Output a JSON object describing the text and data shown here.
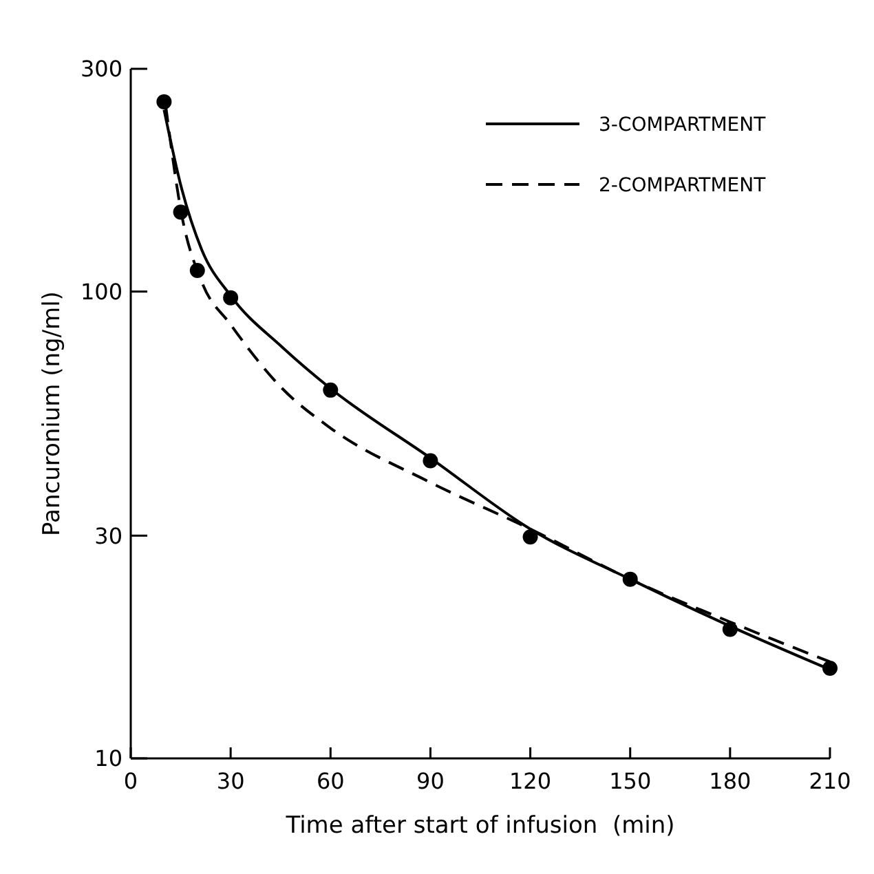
{
  "chart_data": {
    "type": "line",
    "xlabel": "Time after start of infusion  (min)",
    "ylabel": "Pancuronium (ng/ml)",
    "log": "y",
    "xlim": [
      0,
      210
    ],
    "xticks": [
      0,
      30,
      60,
      90,
      120,
      150,
      180,
      210
    ],
    "ylim": [
      10,
      300
    ],
    "yticks": [
      10,
      30,
      100,
      300
    ],
    "legend": "top right",
    "series": [
      {
        "name": "3-COMPARTMENT",
        "line_style": "solid",
        "color": "#000000",
        "x": [
          10,
          15.3,
          21.3,
          30,
          45.5,
          60,
          90,
          120,
          150,
          180,
          210
        ],
        "values": [
          245,
          166,
          123,
          98,
          76,
          62,
          44,
          31,
          24.2,
          19.2,
          15.5
        ]
      },
      {
        "name": "2-COMPARTMENT",
        "line_style": "dashed",
        "color": "#000000",
        "x": [
          10.5,
          15.3,
          21.3,
          30,
          45.5,
          60,
          90,
          120,
          150,
          180,
          210
        ],
        "values": [
          250,
          146,
          105,
          85,
          62,
          51,
          39,
          31,
          24.2,
          19.6,
          16.1
        ]
      },
      {
        "type": "scatter",
        "marker": "circle",
        "color": "#000000",
        "x": [
          10,
          15,
          20,
          30,
          60,
          90,
          120,
          150,
          180,
          210
        ],
        "values": [
          255,
          148,
          111,
          97,
          61.5,
          43.4,
          29.8,
          24.2,
          18.9,
          15.6
        ]
      }
    ]
  }
}
